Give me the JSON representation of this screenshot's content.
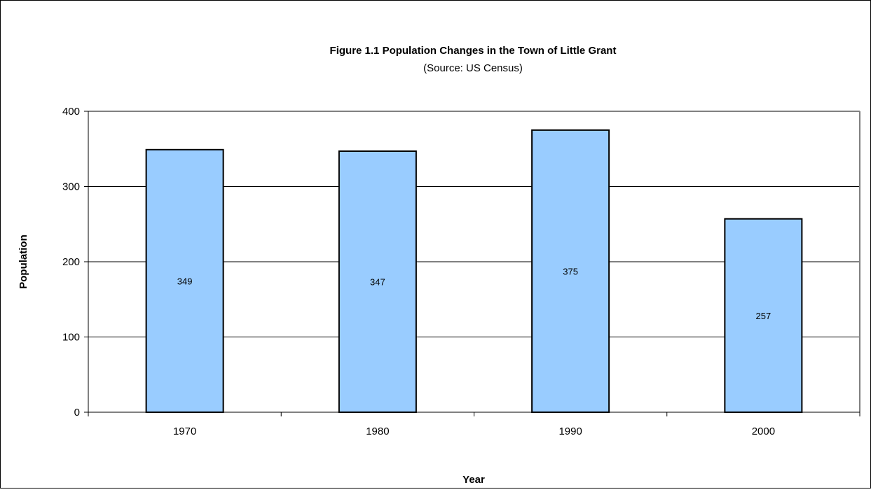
{
  "chart_data": {
    "type": "bar",
    "title": "Figure 1.1 Population Changes in the Town of Little Grant",
    "subtitle": "(Source: US Census)",
    "xlabel": "Year",
    "ylabel": "Population",
    "categories": [
      "1970",
      "1980",
      "1990",
      "2000"
    ],
    "values": [
      349,
      347,
      375,
      257
    ],
    "data_labels": [
      "349",
      "347",
      "375",
      "257"
    ],
    "ylim": [
      0,
      400
    ],
    "yticks": [
      0,
      100,
      200,
      300,
      400
    ],
    "ytick_labels": [
      "0",
      "100",
      "200",
      "300",
      "400"
    ],
    "grid": true,
    "legend": "none",
    "bar_color": "#99ccff",
    "bar_edge_color": "#000000",
    "plot_border_color": "#808080"
  }
}
